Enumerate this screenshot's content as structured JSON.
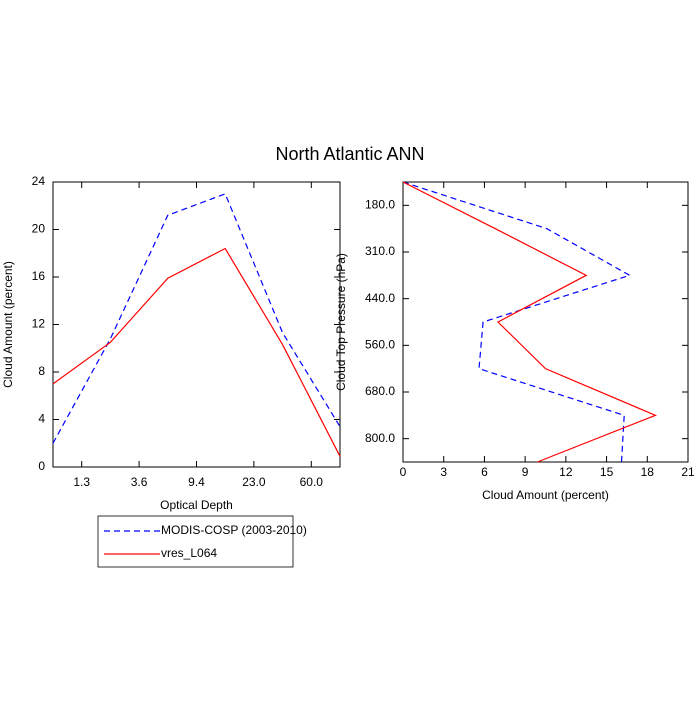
{
  "title": "North Atlantic ANN",
  "chart_data": [
    {
      "type": "line",
      "orientation": "vertical",
      "xlabel": "Optical Depth",
      "ylabel": "Cloud Amount (percent)",
      "categories": [
        null,
        null,
        null,
        null,
        null,
        null
      ],
      "xlim": [
        0,
        5
      ],
      "xticks": [
        {
          "value": 0.5,
          "label": "1.3"
        },
        {
          "value": 1.5,
          "label": "3.6"
        },
        {
          "value": 2.5,
          "label": "9.4"
        },
        {
          "value": 3.5,
          "label": "23.0"
        },
        {
          "value": 4.5,
          "label": "60.0"
        }
      ],
      "ylim": [
        0,
        24
      ],
      "yticks": [
        0,
        4,
        8,
        12,
        16,
        20,
        24
      ],
      "series": [
        {
          "name": "MODIS-COSP (2003-2010)",
          "color": "#0000ff",
          "dash": true,
          "values": [
            2.0,
            10.8,
            21.2,
            23.0,
            11.3,
            3.4
          ]
        },
        {
          "name": "vres_L064",
          "color": "#ff0000",
          "dash": false,
          "values": [
            7.0,
            10.5,
            15.9,
            18.4,
            10.3,
            0.9
          ]
        }
      ]
    },
    {
      "type": "line",
      "orientation": "horizontal",
      "xlabel": "Cloud Amount (percent)",
      "ylabel": "Cloud Top Pressure (hPa)",
      "categories": [
        null,
        null,
        null,
        null,
        null,
        null,
        null
      ],
      "ylim": [
        6,
        0
      ],
      "yticks": [
        {
          "value": 0.5,
          "label": "180.0"
        },
        {
          "value": 1.5,
          "label": "310.0"
        },
        {
          "value": 2.5,
          "label": "440.0"
        },
        {
          "value": 3.5,
          "label": "560.0"
        },
        {
          "value": 4.5,
          "label": "680.0"
        },
        {
          "value": 5.5,
          "label": "800.0"
        }
      ],
      "xlim": [
        0,
        21
      ],
      "xticks": [
        0,
        3,
        6,
        9,
        12,
        15,
        18,
        21
      ],
      "series": [
        {
          "name": "MODIS-COSP (2003-2010)",
          "color": "#0000ff",
          "dash": true,
          "values": [
            0,
            10.6,
            16.7,
            5.9,
            5.6,
            16.3,
            16.1
          ]
        },
        {
          "name": "vres_L064",
          "color": "#ff0000",
          "dash": false,
          "values": [
            0,
            6.8,
            13.5,
            7.0,
            10.5,
            18.6,
            9.9
          ]
        }
      ]
    }
  ]
}
